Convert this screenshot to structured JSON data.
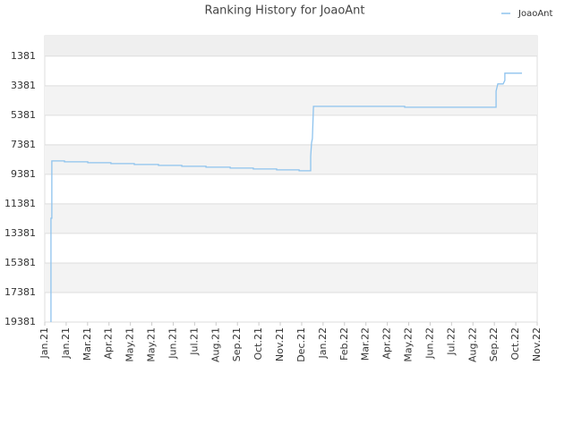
{
  "chart_data": {
    "type": "line",
    "title": "Ranking History for JoaoAnt",
    "x": [
      0.29,
      0.29,
      0.33,
      0.33,
      0.92,
      0.92,
      2.01,
      2.01,
      3.09,
      3.09,
      4.18,
      4.18,
      5.31,
      5.31,
      6.4,
      6.4,
      7.53,
      7.53,
      8.66,
      8.66,
      9.74,
      9.74,
      10.83,
      10.83,
      11.88,
      11.88,
      12.42,
      12.42,
      12.46,
      12.5,
      12.55,
      12.55,
      16.81,
      16.81,
      21.08,
      21.08,
      21.16,
      21.41,
      21.49,
      21.49,
      22.29
    ],
    "series": [
      {
        "name": "JoaoAnt",
        "color": "#8ec3ee",
        "values": [
          19381,
          12351,
          12351,
          8472,
          8472,
          8533,
          8533,
          8594,
          8594,
          8654,
          8654,
          8715,
          8715,
          8775,
          8775,
          8836,
          8836,
          8897,
          8897,
          8957,
          8957,
          9018,
          9018,
          9078,
          9078,
          9139,
          9139,
          8169,
          7260,
          6957,
          4836,
          4775,
          4775,
          4836,
          4836,
          3745,
          3260,
          3260,
          3017,
          2533,
          2533
        ]
      }
    ],
    "xlim": [
      0,
      23
    ],
    "xticks": [
      {
        "value": 0,
        "label": "Jan.21"
      },
      {
        "value": 1,
        "label": "Jan.21"
      },
      {
        "value": 2,
        "label": "Mar.21"
      },
      {
        "value": 3,
        "label": "Apr.21"
      },
      {
        "value": 4,
        "label": "May.21"
      },
      {
        "value": 5,
        "label": "May.21"
      },
      {
        "value": 6,
        "label": "Jun.21"
      },
      {
        "value": 7,
        "label": "Jul.21"
      },
      {
        "value": 8,
        "label": "Aug.21"
      },
      {
        "value": 9,
        "label": "Sep.21"
      },
      {
        "value": 10,
        "label": "Oct.21"
      },
      {
        "value": 11,
        "label": "Nov.21"
      },
      {
        "value": 12,
        "label": "Dec.21"
      },
      {
        "value": 13,
        "label": "Jan.22"
      },
      {
        "value": 14,
        "label": "Feb.22"
      },
      {
        "value": 15,
        "label": "Mar.22"
      },
      {
        "value": 16,
        "label": "Apr.22"
      },
      {
        "value": 17,
        "label": "May.22"
      },
      {
        "value": 18,
        "label": "Jun.22"
      },
      {
        "value": 19,
        "label": "Jul.22"
      },
      {
        "value": 20,
        "label": "Aug.22"
      },
      {
        "value": 21,
        "label": "Sep.22"
      },
      {
        "value": 22,
        "label": "Oct.22"
      },
      {
        "value": 23,
        "label": "Nov.22"
      }
    ],
    "ylim": [
      19381,
      0
    ],
    "yticks": [
      1381,
      3381,
      5381,
      7381,
      9381,
      11381,
      13381,
      15381,
      17381,
      19381
    ],
    "grid": true,
    "legend": "top-right"
  }
}
